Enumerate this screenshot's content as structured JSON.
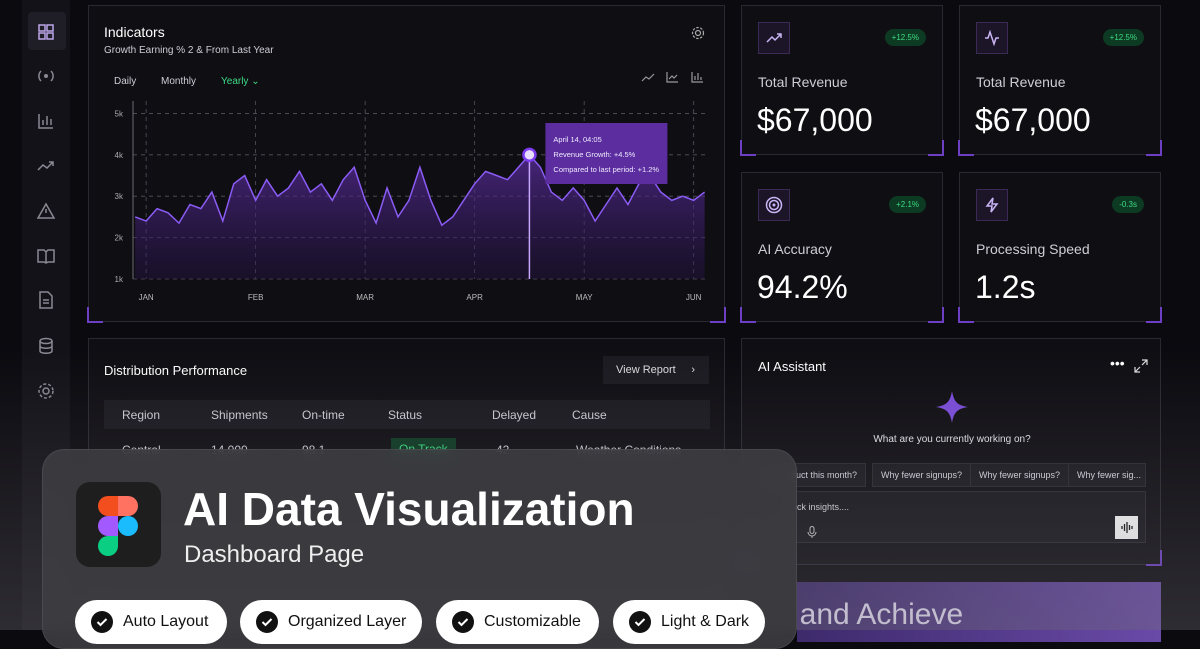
{
  "chart_data": {
    "type": "area",
    "title": "Indicators",
    "subtitle": "Growth Earning % 2 & From Last Year",
    "x": [
      -0.1,
      0,
      0.1,
      0.2,
      0.3,
      0.4,
      0.5,
      0.6,
      0.7,
      0.8,
      0.9,
      1,
      1.1,
      1.2,
      1.3,
      1.4,
      1.5,
      1.6,
      1.7,
      1.8,
      1.9,
      2,
      2.1,
      2.2,
      2.3,
      2.4,
      2.5,
      2.6,
      2.7,
      2.8,
      2.9,
      3,
      3.1,
      3.2,
      3.3,
      3.4,
      3.5,
      3.6,
      3.7,
      3.8,
      3.9,
      4,
      4.1,
      4.2,
      4.3,
      4.4,
      4.5,
      4.6,
      4.7,
      4.8,
      4.9,
      5,
      5.1
    ],
    "series": [
      {
        "name": "Revenue",
        "color": "#8b5cf6",
        "values": [
          2.5,
          2.4,
          2.7,
          2.6,
          2.35,
          2.8,
          2.7,
          3.1,
          2.4,
          3.3,
          3.5,
          2.9,
          3.4,
          3.0,
          3.2,
          3.6,
          3.1,
          3.3,
          2.9,
          3.4,
          3.7,
          2.9,
          2.35,
          3.2,
          2.5,
          2.9,
          3.7,
          2.9,
          2.3,
          2.5,
          2.9,
          3.3,
          3.6,
          3.5,
          3.4,
          3.7,
          4.0,
          3.7,
          3.1,
          2.9,
          3.2,
          2.9,
          2.4,
          2.8,
          3.2,
          2.8,
          3.3,
          3.5,
          3.1,
          2.9,
          3.0,
          2.9,
          3.1
        ]
      }
    ],
    "xlim": [
      -0.12,
      5.14
    ],
    "xticks": [
      {
        "value": 0,
        "label": "JAN"
      },
      {
        "value": 1,
        "label": "FEB"
      },
      {
        "value": 2,
        "label": "MAR"
      },
      {
        "value": 3,
        "label": "APR"
      },
      {
        "value": 4,
        "label": "MAY"
      },
      {
        "value": 5,
        "label": "JUN"
      }
    ],
    "ylim": [
      1,
      5.3
    ],
    "yticks": [
      {
        "value": 1,
        "label": "1k"
      },
      {
        "value": 2,
        "label": "2k"
      },
      {
        "value": 3,
        "label": "3k"
      },
      {
        "value": 4,
        "label": "4k"
      },
      {
        "value": 5,
        "label": "5k"
      }
    ],
    "grid": true,
    "highlight": 36,
    "annotations": [
      "April 14, 04:05",
      "Revenue Growth: +4.5%",
      "Compared to last period: +1.2%"
    ]
  },
  "tabs": [
    "Daily",
    "Monthly",
    "Yearly"
  ],
  "active_tab": 2,
  "cards": [
    {
      "badge": "+12.5%",
      "label": "Total Revenue",
      "value": "$67,000"
    },
    {
      "badge": "+12.5%",
      "label": "Total Revenue",
      "value": "$67,000"
    },
    {
      "badge": "+2.1%",
      "label": "AI Accuracy",
      "value": "94.2%"
    },
    {
      "badge": "-0.3s",
      "label": "Processing Speed",
      "value": "1.2s"
    }
  ],
  "distribution": {
    "title": "Distribution Performance",
    "button": "View Report",
    "columns": [
      "Region",
      "Shipments",
      "On-time",
      "Status",
      "Delayed",
      "Cause"
    ],
    "rows": [
      [
        "Central",
        "14,000",
        "98.1",
        "On Track",
        "42",
        "Weather Conditions"
      ]
    ]
  },
  "assistant": {
    "title": "AI Assistant",
    "prompt": "What are you currently working on?",
    "suggestions": [
      "duct this month?",
      "Why fewer signups?",
      "Why fewer signups?",
      "Why fewer sig..."
    ],
    "input": "ick insights...."
  },
  "overlay": {
    "title": "AI Data Visualization",
    "subtitle": "Dashboard Page",
    "features": [
      "Auto Layout",
      "Organized Layer",
      "Customizable",
      "Light & Dark"
    ]
  },
  "banner": {
    "text": "t and Achieve"
  }
}
